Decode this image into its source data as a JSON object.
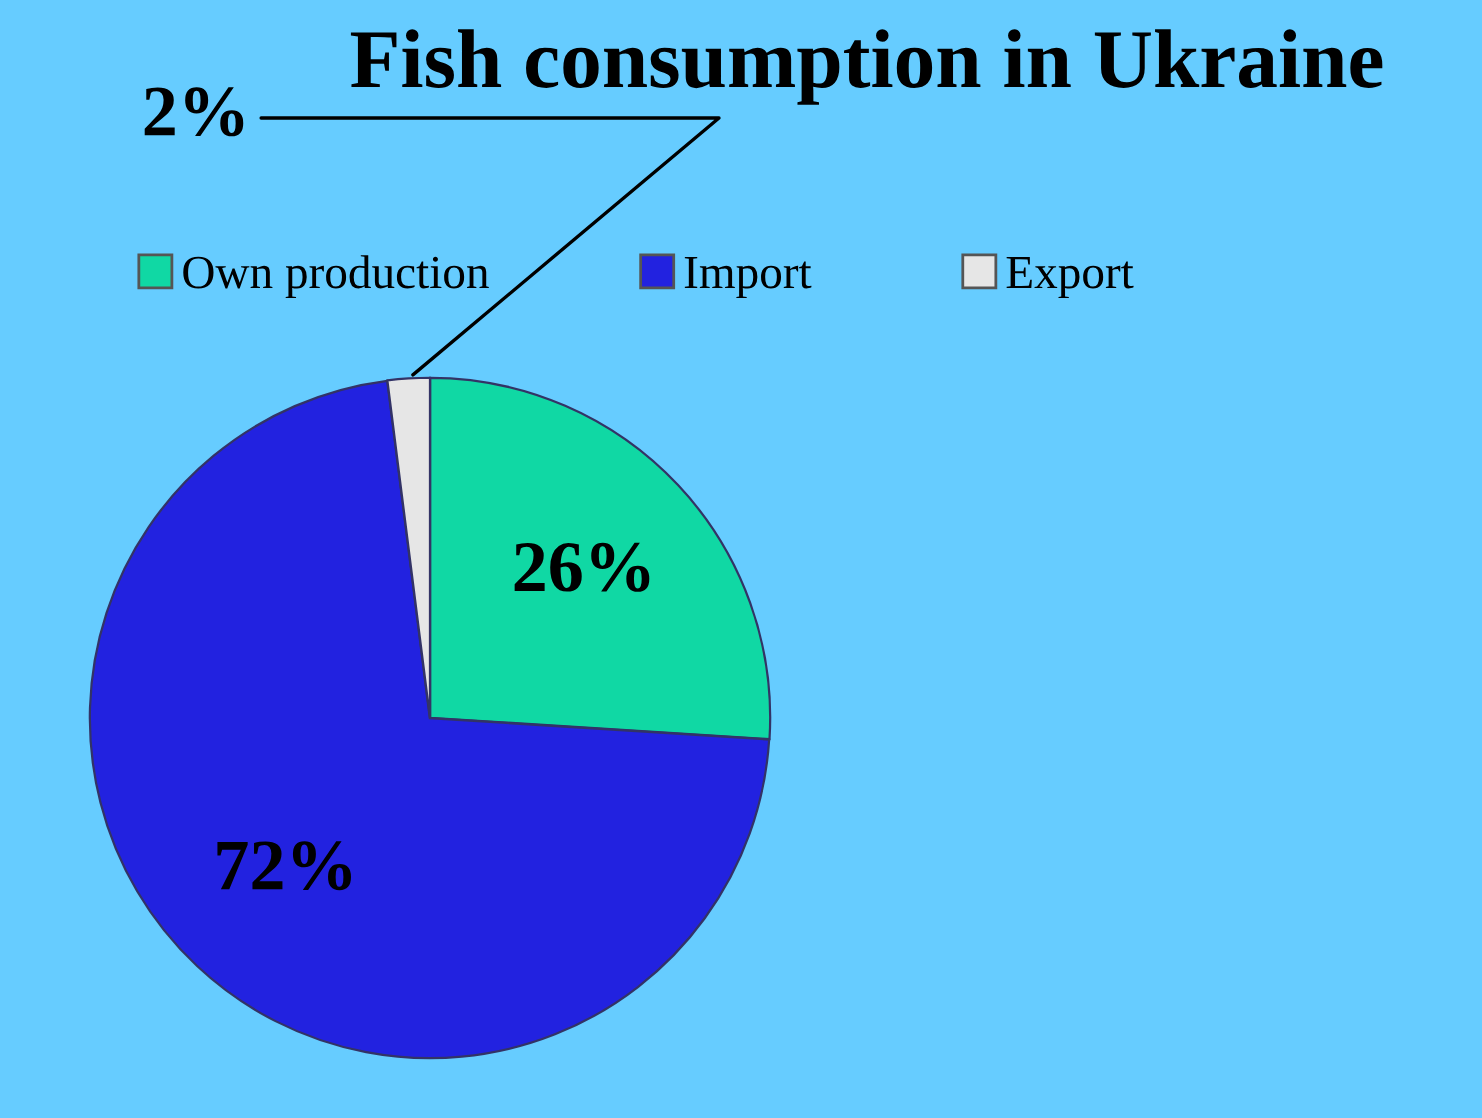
{
  "chart_data": {
    "type": "pie",
    "title": "Fish consumption in Ukraine",
    "categories": [
      "Own production",
      "Import",
      "Export"
    ],
    "values": [
      26,
      72,
      2
    ],
    "colors": [
      "#10d8a4",
      "#2222e0",
      "#e6e6e6"
    ],
    "value_labels": [
      "26%",
      "72%",
      "2%"
    ],
    "legend": "top"
  }
}
